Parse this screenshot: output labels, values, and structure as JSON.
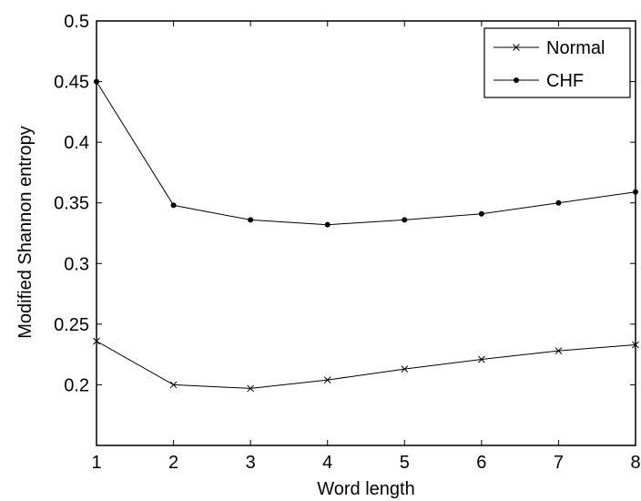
{
  "chart_data": {
    "type": "line",
    "title": "",
    "xlabel": "Word length",
    "ylabel": "Modified Shannon entropy",
    "xlim": [
      1,
      8
    ],
    "ylim": [
      0.15,
      0.5
    ],
    "xticks": [
      "1",
      "2",
      "3",
      "4",
      "5",
      "6",
      "7",
      "8"
    ],
    "yticks": [
      "0.2",
      "0.25",
      "0.3",
      "0.35",
      "0.4",
      "0.45",
      "0.5"
    ],
    "grid": false,
    "legend_position": "top-right",
    "x": [
      1,
      2,
      3,
      4,
      5,
      6,
      7,
      8
    ],
    "series": [
      {
        "name": "Normal",
        "marker": "x",
        "color": "#000000",
        "values": [
          0.236,
          0.2,
          0.197,
          0.204,
          0.213,
          0.221,
          0.228,
          0.233
        ]
      },
      {
        "name": "CHF",
        "marker": "dot",
        "color": "#000000",
        "values": [
          0.45,
          0.348,
          0.336,
          0.332,
          0.336,
          0.341,
          0.35,
          0.359
        ]
      }
    ]
  }
}
